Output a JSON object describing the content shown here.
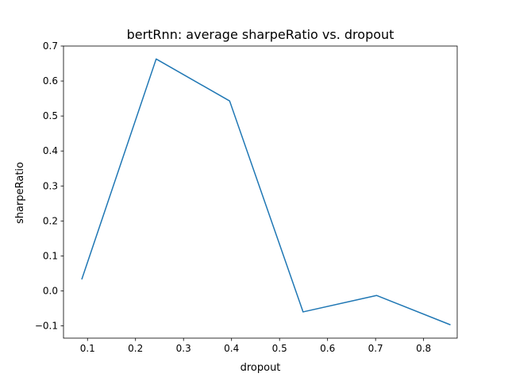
{
  "chart_data": {
    "type": "line",
    "title": "bertRnn: average sharpeRatio vs. dropout",
    "xlabel": "dropout",
    "ylabel": "sharpeRatio",
    "xlim": [
      0.05,
      0.87
    ],
    "ylim": [
      -0.135,
      0.7
    ],
    "xticks": [
      0.1,
      0.2,
      0.3,
      0.4,
      0.5,
      0.6,
      0.7,
      0.8
    ],
    "xtick_labels": [
      "0.1",
      "0.2",
      "0.3",
      "0.4",
      "0.5",
      "0.6",
      "0.7",
      "0.8"
    ],
    "yticks": [
      -0.1,
      0.0,
      0.1,
      0.2,
      0.3,
      0.4,
      0.5,
      0.6,
      0.7
    ],
    "ytick_labels": [
      "−0.1",
      "0.0",
      "0.1",
      "0.2",
      "0.3",
      "0.4",
      "0.5",
      "0.6",
      "0.7"
    ],
    "grid": false,
    "series": [
      {
        "color": "#1f77b4",
        "x": [
          0.088,
          0.243,
          0.396,
          0.549,
          0.702,
          0.856
        ],
        "y": [
          0.033,
          0.663,
          0.543,
          -0.06,
          -0.013,
          -0.097
        ]
      }
    ]
  }
}
